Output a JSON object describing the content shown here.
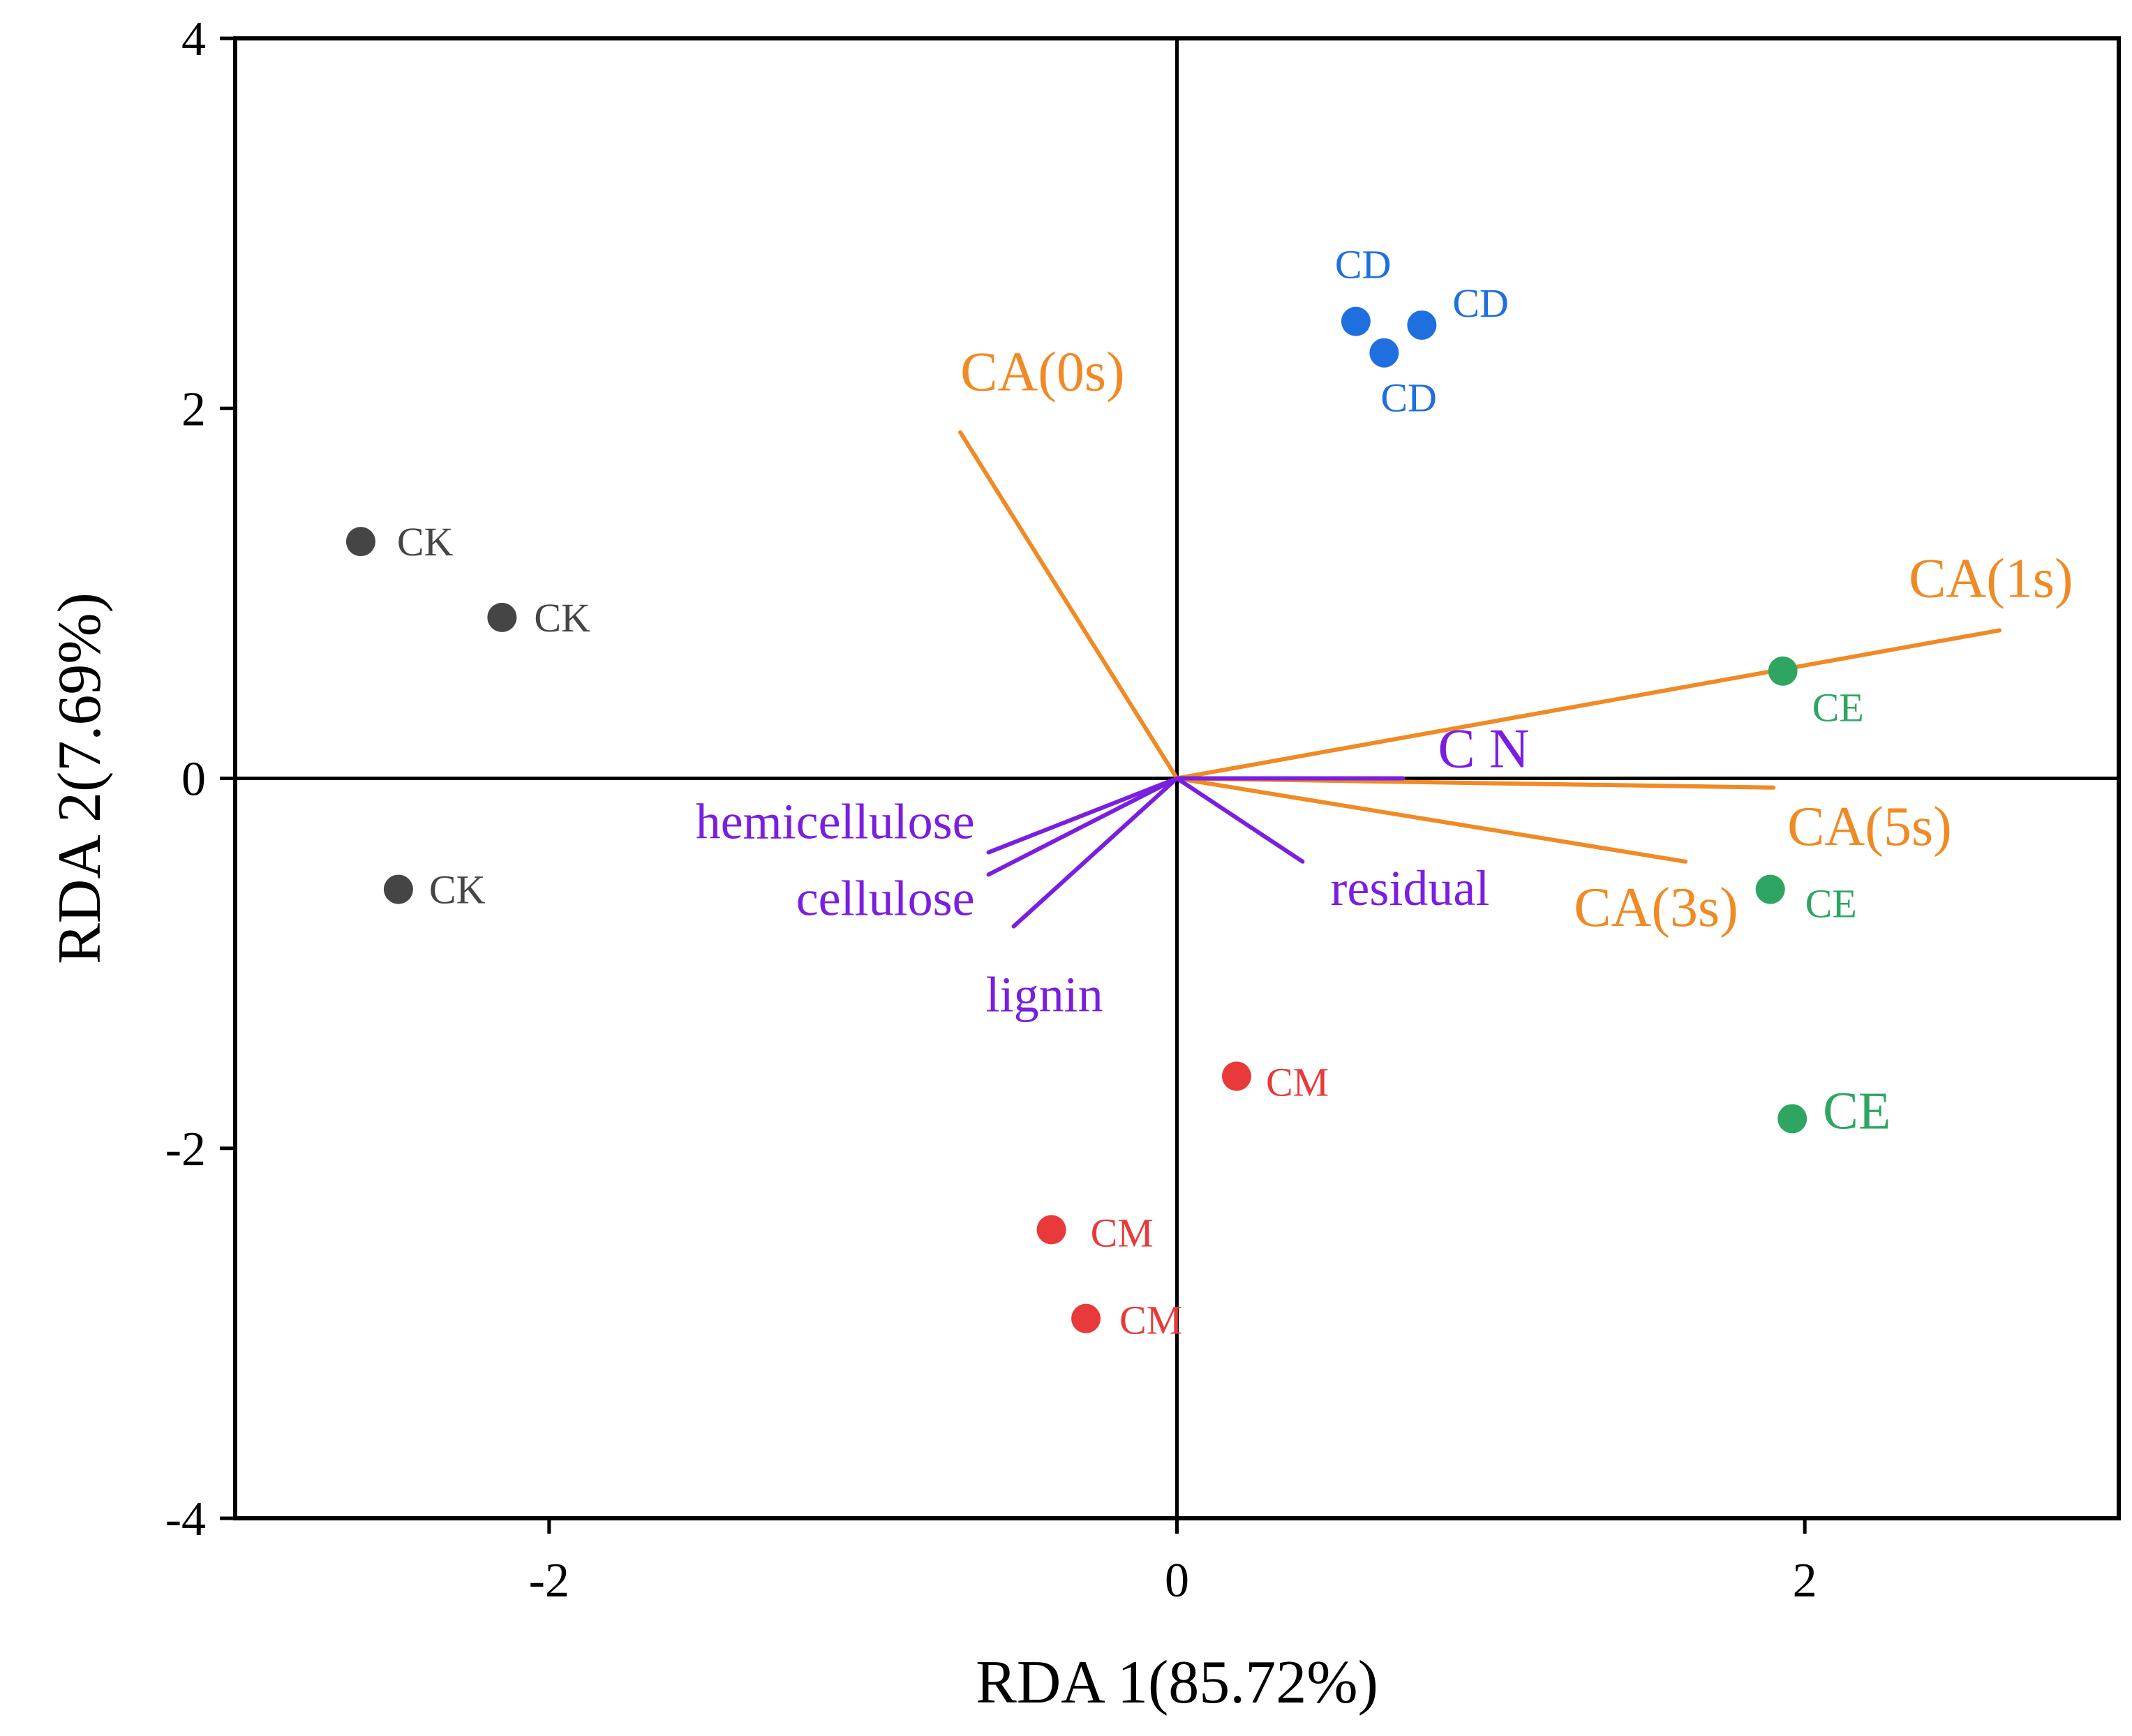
{
  "chart_data": {
    "type": "scatter",
    "subtype": "RDA biplot",
    "title": "",
    "xlabel": "RDA 1(85.72%)",
    "ylabel": "RDA 2(7.69%)",
    "xlim": [
      -3,
      3
    ],
    "ylim": [
      -4,
      4
    ],
    "xticks": [
      -2,
      0,
      2
    ],
    "yticks": [
      -4,
      -2,
      0,
      2,
      4
    ],
    "xtick_labels": [
      "-2",
      "0",
      "2"
    ],
    "ytick_labels": [
      "-4",
      "-2",
      "0",
      "2",
      "4"
    ],
    "grid": false,
    "zero_lines": true,
    "series": [
      {
        "name": "CK",
        "color": "#454545",
        "marker": "circle",
        "points": [
          {
            "x": -2.6,
            "y": 1.28,
            "label": "CK"
          },
          {
            "x": -2.15,
            "y": 0.87,
            "label": "CK"
          },
          {
            "x": -2.48,
            "y": -0.6,
            "label": "CK"
          }
        ]
      },
      {
        "name": "CD",
        "color": "#1f6fde",
        "marker": "circle",
        "points": [
          {
            "x": 0.57,
            "y": 2.47,
            "label": "CD"
          },
          {
            "x": 0.78,
            "y": 2.45,
            "label": "CD"
          },
          {
            "x": 0.66,
            "y": 2.3,
            "label": "CD"
          }
        ]
      },
      {
        "name": "CE",
        "color": "#2ea662",
        "marker": "circle",
        "points": [
          {
            "x": 1.93,
            "y": 0.58,
            "label": "CE"
          },
          {
            "x": 1.89,
            "y": -0.6,
            "label": "CE"
          },
          {
            "x": 1.96,
            "y": -1.84,
            "label": "CE"
          }
        ]
      },
      {
        "name": "CM",
        "color": "#e83a3a",
        "marker": "circle",
        "points": [
          {
            "x": 0.19,
            "y": -1.61,
            "label": "CM"
          },
          {
            "x": -0.4,
            "y": -2.44,
            "label": "CM"
          },
          {
            "x": -0.29,
            "y": -2.92,
            "label": "CM"
          }
        ]
      }
    ],
    "vectors": [
      {
        "name": "CA(0s)",
        "group": "response",
        "color": "#f08a24",
        "x": -0.69,
        "y": 1.87
      },
      {
        "name": "CA(1s)",
        "group": "response",
        "color": "#f08a24",
        "x": 2.62,
        "y": 0.8
      },
      {
        "name": "CA(5s)",
        "group": "response",
        "color": "#f08a24",
        "x": 1.9,
        "y": -0.05
      },
      {
        "name": "CA(3s)",
        "group": "response",
        "color": "#f08a24",
        "x": 1.62,
        "y": -0.45
      },
      {
        "name": "C N",
        "group": "explanatory",
        "color": "#7a1ee0",
        "x": 0.72,
        "y": 0.0
      },
      {
        "name": "residual",
        "group": "explanatory",
        "color": "#7a1ee0",
        "x": 0.4,
        "y": -0.45
      },
      {
        "name": "hemicellulose",
        "group": "explanatory",
        "color": "#7a1ee0",
        "x": -0.6,
        "y": -0.4
      },
      {
        "name": "cellulose",
        "group": "explanatory",
        "color": "#7a1ee0",
        "x": -0.6,
        "y": -0.52
      },
      {
        "name": "lignin",
        "group": "explanatory",
        "color": "#7a1ee0",
        "x": -0.52,
        "y": -0.8
      }
    ]
  }
}
